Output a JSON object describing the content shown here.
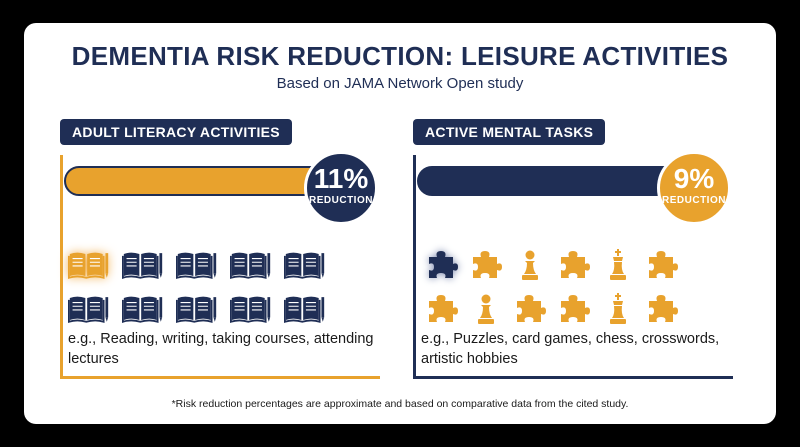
{
  "title": "DEMENTIA RISK REDUCTION: LEISURE ACTIVITIES",
  "subtitle": "Based on JAMA Network Open study",
  "colors": {
    "navy": "#1f2e55",
    "orange": "#e8a22d",
    "background": "#000000",
    "card": "#ffffff"
  },
  "panels": [
    {
      "heading": "ADULT LITERACY ACTIVITIES",
      "percent": "11%",
      "percent_label": "REDUCTION",
      "bar_color": "orange",
      "icon": "book-pen-icon",
      "icon_count": 10,
      "highlighted_icon_index": 0,
      "examples": "e.g., Reading, writing, taking courses, attending lectures"
    },
    {
      "heading": "ACTIVE MENTAL TASKS",
      "percent": "9%",
      "percent_label": "REDUCTION",
      "bar_color": "navy",
      "icons": [
        "puzzle-piece-icon",
        "puzzle-piece-icon",
        "chess-pawn-icon",
        "puzzle-piece-icon",
        "chess-king-icon",
        "puzzle-piece-icon",
        "puzzle-piece-icon",
        "chess-pawn-icon",
        "puzzle-piece-icon",
        "puzzle-piece-icon",
        "chess-king-icon",
        "puzzle-piece-icon"
      ],
      "highlighted_icon_index": 0,
      "examples": "e.g., Puzzles, card games, chess, crosswords, artistic hobbies"
    }
  ],
  "footnote": "*Risk reduction percentages are approximate and based on comparative data from the cited study."
}
